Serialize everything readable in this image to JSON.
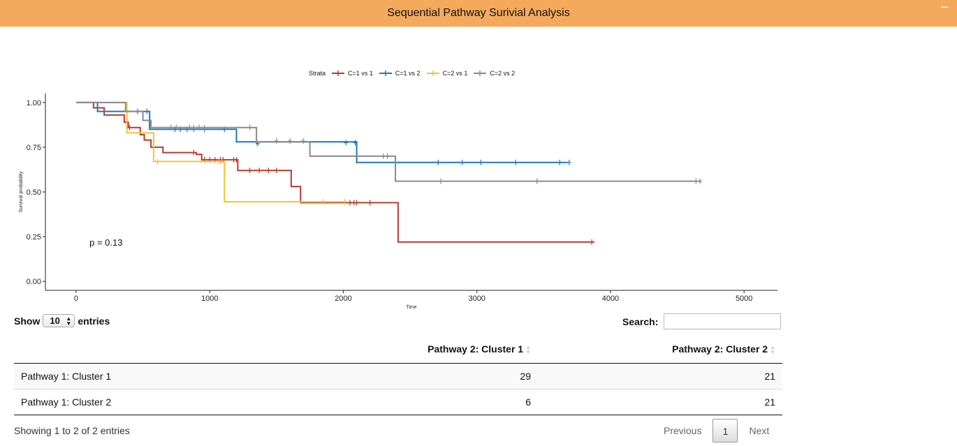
{
  "panel": {
    "title": "Sequential Pathway Surivial Analysis",
    "collapse_symbol": "−"
  },
  "chart_data": {
    "type": "line",
    "subtype": "kaplan-meier",
    "legend_title": "Strata",
    "legend_placement": "top",
    "xlabel": "Time",
    "ylabel": "Survival probability",
    "xlim": [
      -230,
      5250
    ],
    "ylim": [
      -0.05,
      1.05
    ],
    "x_ticks": [
      0,
      1000,
      2000,
      3000,
      4000,
      5000
    ],
    "y_ticks": [
      0.0,
      0.25,
      0.5,
      0.75,
      1.0
    ],
    "y_tick_labels": [
      "0.00",
      "0.25",
      "0.50",
      "0.75",
      "1.00"
    ],
    "x_tick_labels": [
      "0",
      "1000",
      "2000",
      "3000",
      "4000",
      "5000"
    ],
    "grid": false,
    "annotation": "p = 0.13",
    "annotation_pos": [
      100,
      0.2
    ],
    "series": [
      {
        "name": "C=1 vs 1",
        "color": "#b83a2b",
        "steps": [
          [
            0,
            1.0
          ],
          [
            130,
            0.97
          ],
          [
            210,
            0.93
          ],
          [
            360,
            0.89
          ],
          [
            390,
            0.86
          ],
          [
            480,
            0.82
          ],
          [
            510,
            0.79
          ],
          [
            560,
            0.75
          ],
          [
            650,
            0.72
          ],
          [
            900,
            0.71
          ],
          [
            940,
            0.68
          ],
          [
            1210,
            0.62
          ],
          [
            1610,
            0.53
          ],
          [
            1680,
            0.44
          ],
          [
            2410,
            0.22
          ],
          [
            3880,
            0.22
          ]
        ],
        "censored": [
          [
            400,
            0.86
          ],
          [
            880,
            0.72
          ],
          [
            960,
            0.68
          ],
          [
            1000,
            0.68
          ],
          [
            1040,
            0.68
          ],
          [
            1080,
            0.68
          ],
          [
            1100,
            0.68
          ],
          [
            1180,
            0.68
          ],
          [
            1200,
            0.68
          ],
          [
            1300,
            0.62
          ],
          [
            1370,
            0.62
          ],
          [
            1440,
            0.62
          ],
          [
            1500,
            0.62
          ],
          [
            2050,
            0.44
          ],
          [
            2080,
            0.44
          ],
          [
            2100,
            0.44
          ],
          [
            2200,
            0.44
          ],
          [
            3860,
            0.22
          ]
        ]
      },
      {
        "name": "C=1 vs 2",
        "color": "#1f77bc",
        "steps": [
          [
            0,
            1.0
          ],
          [
            160,
            0.95
          ],
          [
            550,
            0.85
          ],
          [
            1200,
            0.78
          ],
          [
            2100,
            0.665
          ],
          [
            3680,
            0.665
          ]
        ],
        "censored": [
          [
            460,
            0.95
          ],
          [
            530,
            0.95
          ],
          [
            740,
            0.85
          ],
          [
            780,
            0.85
          ],
          [
            830,
            0.85
          ],
          [
            880,
            0.85
          ],
          [
            960,
            0.85
          ],
          [
            1110,
            0.85
          ],
          [
            1350,
            0.78
          ],
          [
            1360,
            0.77
          ],
          [
            2020,
            0.775
          ],
          [
            2090,
            0.775
          ],
          [
            2710,
            0.665
          ],
          [
            2890,
            0.665
          ],
          [
            3030,
            0.665
          ],
          [
            3290,
            0.665
          ],
          [
            3620,
            0.665
          ],
          [
            3690,
            0.665
          ]
        ]
      },
      {
        "name": "C=2 vs 1",
        "color": "#f3c230",
        "steps": [
          [
            0,
            1.0
          ],
          [
            380,
            0.83
          ],
          [
            580,
            0.67
          ],
          [
            1110,
            0.445
          ],
          [
            2020,
            0.445
          ]
        ],
        "censored": [
          [
            610,
            0.67
          ],
          [
            1070,
            0.67
          ],
          [
            1090,
            0.67
          ],
          [
            1850,
            0.445
          ],
          [
            2010,
            0.445
          ]
        ]
      },
      {
        "name": "C=2 vs 2",
        "color": "#8a8a8a",
        "steps": [
          [
            0,
            1.0
          ],
          [
            370,
            0.95
          ],
          [
            500,
            0.9
          ],
          [
            560,
            0.86
          ],
          [
            1350,
            0.78
          ],
          [
            1750,
            0.7
          ],
          [
            2390,
            0.56
          ],
          [
            4680,
            0.56
          ]
        ],
        "censored": [
          [
            710,
            0.86
          ],
          [
            750,
            0.86
          ],
          [
            850,
            0.86
          ],
          [
            880,
            0.86
          ],
          [
            920,
            0.86
          ],
          [
            960,
            0.86
          ],
          [
            1300,
            0.86
          ],
          [
            1500,
            0.785
          ],
          [
            1600,
            0.785
          ],
          [
            1700,
            0.785
          ],
          [
            2300,
            0.7
          ],
          [
            2330,
            0.7
          ],
          [
            2730,
            0.56
          ],
          [
            3450,
            0.56
          ],
          [
            4640,
            0.56
          ],
          [
            4670,
            0.56
          ]
        ]
      }
    ]
  },
  "datatable": {
    "length": {
      "show_label": "Show",
      "value": "10",
      "entries_label": "entries"
    },
    "search": {
      "label": "Search:",
      "value": ""
    },
    "columns": [
      "",
      "Pathway 2: Cluster 1",
      "Pathway 2: Cluster 2"
    ],
    "rows": [
      [
        "Pathway 1: Cluster 1",
        "29",
        "21"
      ],
      [
        "Pathway 1: Cluster 2",
        "6",
        "21"
      ]
    ],
    "info": "Showing 1 to 2 of 2 entries",
    "pagination": {
      "previous": "Previous",
      "current": "1",
      "next": "Next"
    }
  }
}
